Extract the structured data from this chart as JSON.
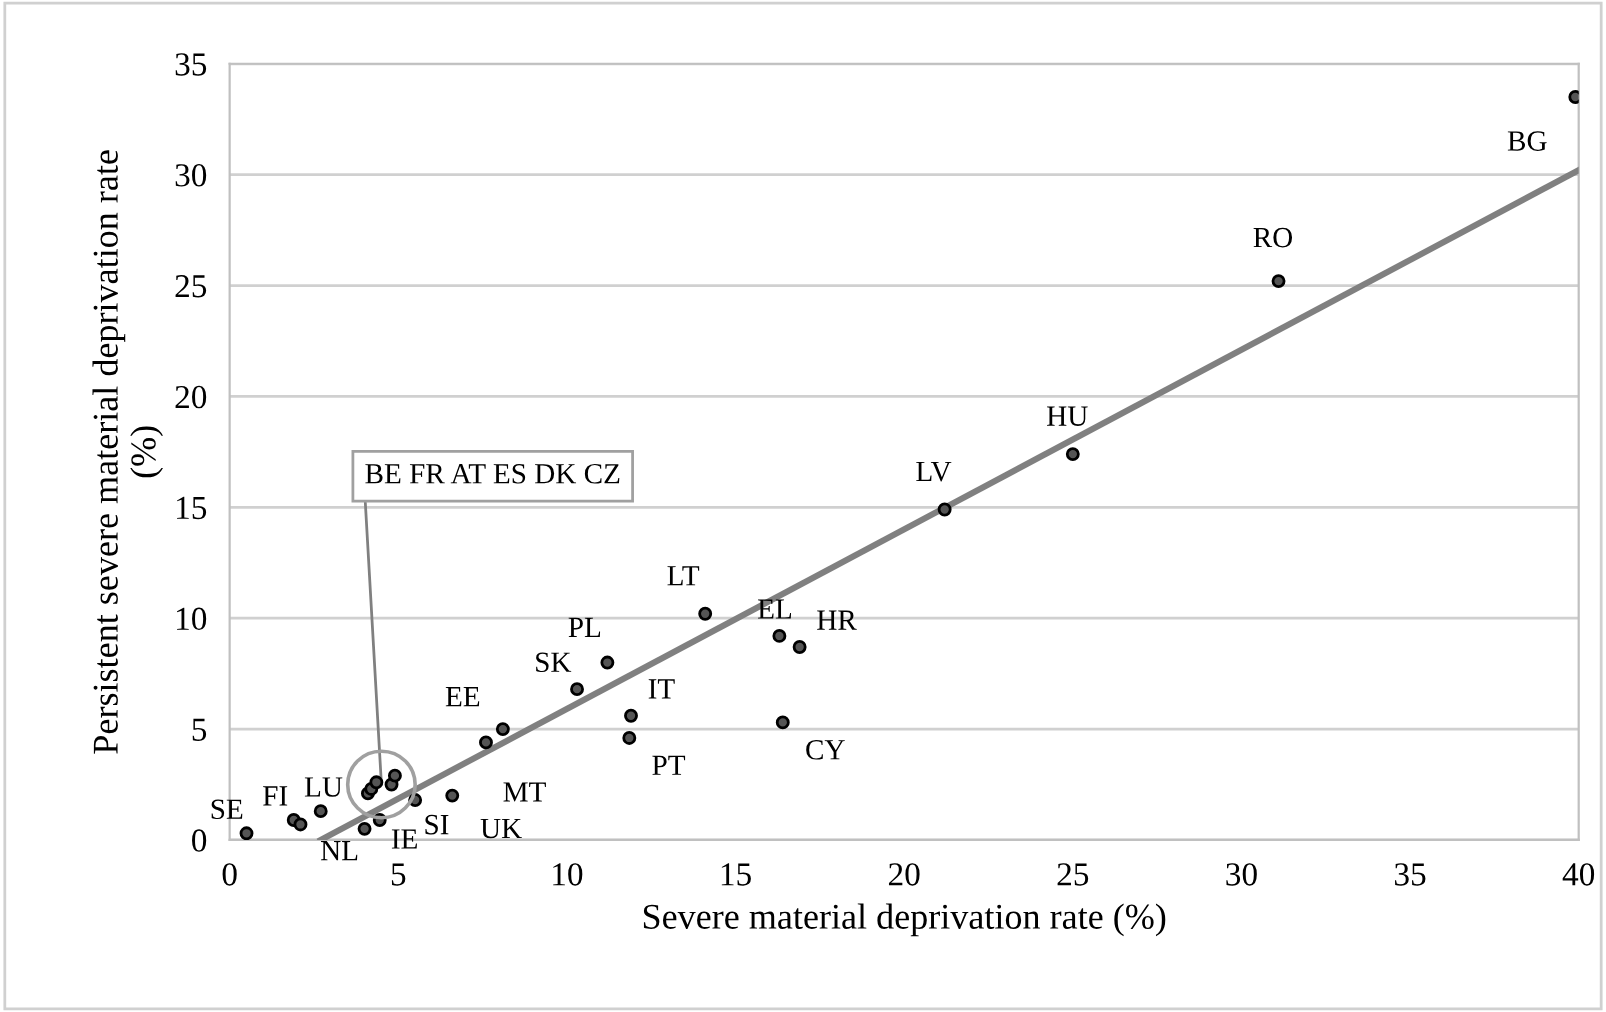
{
  "chart_data": {
    "type": "scatter",
    "xlabel": "Severe material deprivation rate (%)",
    "ylabel": "Persistent severe material deprivation rate\n(%)",
    "xlim": [
      0,
      40
    ],
    "ylim": [
      0,
      35
    ],
    "xticks": [
      0,
      5,
      10,
      15,
      20,
      25,
      30,
      35,
      40
    ],
    "yticks": [
      0,
      5,
      10,
      15,
      20,
      25,
      30,
      35
    ],
    "grid": "y",
    "series": [
      {
        "marker": "circle",
        "color": "#555555",
        "x": [
          0.5,
          1.9,
          2.1,
          2.7,
          4.0,
          4.45,
          5.5,
          6.6,
          4.1,
          4.2,
          4.35,
          4.7,
          4.8,
          4.9,
          7.6,
          8.1,
          10.3,
          11.2,
          11.85,
          11.9,
          14.1,
          16.3,
          16.4,
          16.9,
          21.2,
          25.0,
          31.1,
          39.9
        ],
        "values": [
          0.3,
          0.9,
          0.7,
          1.3,
          0.5,
          0.9,
          1.8,
          2.0,
          2.1,
          2.3,
          2.6,
          null,
          2.5,
          2.9,
          4.4,
          5.0,
          6.8,
          8.0,
          4.6,
          5.6,
          10.2,
          9.2,
          5.3,
          8.7,
          14.9,
          17.4,
          25.2,
          33.5
        ]
      },
      {
        "type": "line",
        "color": "#808080",
        "x": [
          2.7,
          40
        ],
        "values": [
          0,
          30.2
        ]
      }
    ],
    "annotations": [
      {
        "text": "SE",
        "x": 0.5,
        "y": 0.3
      },
      {
        "text": "FI",
        "x": 1.9,
        "y": 0.9
      },
      {
        "text": "LU",
        "x": 2.7,
        "y": 1.3
      },
      {
        "text": "NL",
        "x": 4.0,
        "y": 0.5
      },
      {
        "text": "IE",
        "x": 4.45,
        "y": 0.9
      },
      {
        "text": "SI",
        "x": 5.5,
        "y": 1.8
      },
      {
        "text": "UK",
        "x": 6.6,
        "y": 2.0
      },
      {
        "text": "BE FR AT ES DK CZ",
        "x": 4.5,
        "y": 2.5
      },
      {
        "text": "MT",
        "x": 7.6,
        "y": 4.4
      },
      {
        "text": "EE",
        "x": 8.1,
        "y": 5.0
      },
      {
        "text": "SK",
        "x": 10.3,
        "y": 6.8
      },
      {
        "text": "PL",
        "x": 11.2,
        "y": 8.0
      },
      {
        "text": "PT",
        "x": 11.85,
        "y": 4.6
      },
      {
        "text": "IT",
        "x": 11.9,
        "y": 5.6
      },
      {
        "text": "LT",
        "x": 14.1,
        "y": 10.2
      },
      {
        "text": "EL",
        "x": 16.3,
        "y": 9.2
      },
      {
        "text": "CY",
        "x": 16.4,
        "y": 5.3
      },
      {
        "text": "HR",
        "x": 16.9,
        "y": 8.7
      },
      {
        "text": "LV",
        "x": 21.2,
        "y": 14.9
      },
      {
        "text": "HU",
        "x": 25.0,
        "y": 17.4
      },
      {
        "text": "RO",
        "x": 31.1,
        "y": 25.2
      },
      {
        "text": "BG",
        "x": 39.9,
        "y": 33.5
      }
    ]
  }
}
